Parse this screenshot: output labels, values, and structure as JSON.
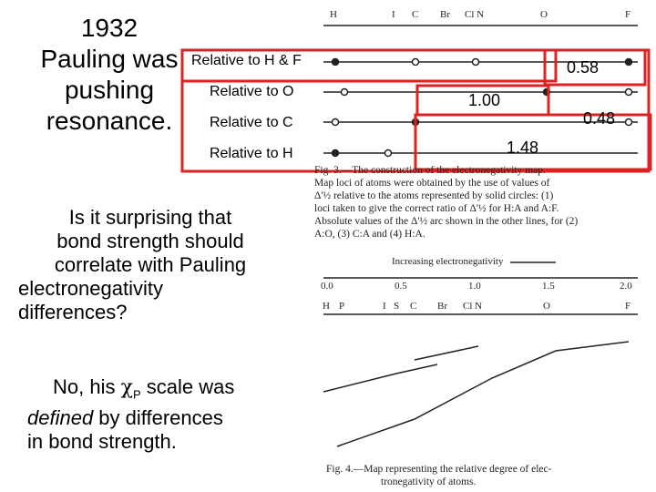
{
  "slide": {
    "title_lines": [
      "1932",
      "Pauling was",
      "pushing",
      "resonance."
    ],
    "relative_labels": [
      "Relative to H & F",
      "Relative to O",
      "Relative to C",
      "Relative to H"
    ],
    "callouts": [
      "0.58",
      "1.00",
      "0.48",
      "1.48"
    ],
    "question_lines": [
      "Is it surprising that",
      "bond strength should",
      "correlate with Pauling",
      "electronegativity",
      "differences?"
    ],
    "answer_parts": [
      "No, his ",
      "χ",
      "P",
      " scale was",
      "defined",
      " by differences",
      "in bond strength."
    ],
    "figure3": {
      "atom_labels": [
        "H",
        "I",
        "C",
        "Br",
        "Cl N",
        "O",
        "F"
      ],
      "caption_lines": [
        "Fig. 3.—The construction of the electronegativity map.",
        "Map loci of atoms were obtained by the use of values of",
        "Δ'½ relative to the atoms represented by solid circles: (1)",
        "loci taken to give the correct ratio of Δ'½ for H:A and A:F.",
        "Absolute values of the Δ'½ arc shown in the other lines, for (2)",
        "A:O, (3) C:A and (4) H:A."
      ]
    },
    "figure4": {
      "axis_title": "Increasing electronegativity",
      "axis_ticks": [
        "0.0",
        "0.5",
        "1.0",
        "1.5",
        "2.0"
      ],
      "atom_labels": [
        "H",
        "P",
        "I",
        "S",
        "C",
        "Br",
        "Cl N",
        "O",
        "F"
      ],
      "caption_lines": [
        "Fig. 4.—Map representing the relative degree of elec-",
        "tronegativity of atoms."
      ]
    }
  }
}
